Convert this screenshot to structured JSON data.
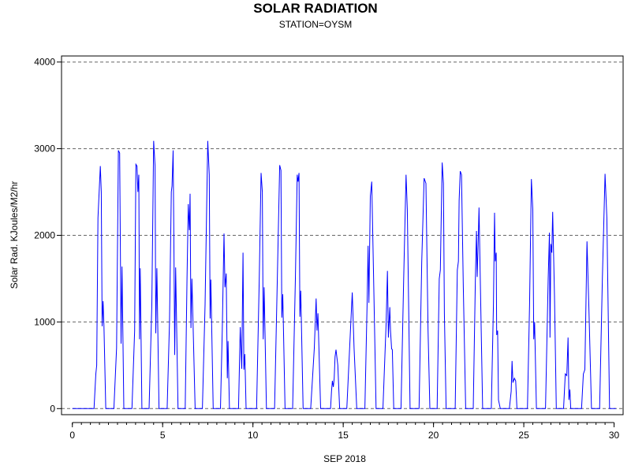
{
  "chart_data": {
    "type": "line",
    "title": "SOLAR RADIATION",
    "subtitle": "STATION=OYSM",
    "xlabel": "SEP 2018",
    "ylabel": "Solar Rad. KJoules/M2/hr",
    "xlim": [
      -0.6,
      30.5
    ],
    "ylim": [
      -70,
      4070
    ],
    "xticks": [
      0,
      5,
      10,
      15,
      20,
      25,
      30
    ],
    "xminor_step": 0.5,
    "yticks": [
      0,
      1000,
      2000,
      3000,
      4000
    ],
    "grid": "horizontal-dashed",
    "line_color": "#0000ff",
    "series": [
      {
        "values_desc": "hourly",
        "points": [
          [
            0,
            0
          ],
          [
            1.2,
            0
          ],
          [
            1.3,
            400
          ],
          [
            1.35,
            500
          ],
          [
            1.42,
            2200
          ],
          [
            1.55,
            2800
          ],
          [
            1.6,
            2500
          ],
          [
            1.65,
            950
          ],
          [
            1.7,
            1240
          ],
          [
            1.75,
            950
          ],
          [
            1.85,
            0
          ],
          [
            2.3,
            0
          ],
          [
            2.45,
            700
          ],
          [
            2.55,
            2980
          ],
          [
            2.62,
            2950
          ],
          [
            2.7,
            750
          ],
          [
            2.75,
            1640
          ],
          [
            2.85,
            0
          ],
          [
            3.3,
            0
          ],
          [
            3.45,
            900
          ],
          [
            3.52,
            2820
          ],
          [
            3.58,
            2800
          ],
          [
            3.63,
            2500
          ],
          [
            3.68,
            2700
          ],
          [
            3.72,
            800
          ],
          [
            3.76,
            1620
          ],
          [
            3.85,
            0
          ],
          [
            4.25,
            0
          ],
          [
            4.4,
            1200
          ],
          [
            4.5,
            3090
          ],
          [
            4.58,
            2800
          ],
          [
            4.62,
            870
          ],
          [
            4.68,
            1620
          ],
          [
            4.8,
            0
          ],
          [
            5.25,
            0
          ],
          [
            5.38,
            1000
          ],
          [
            5.48,
            2500
          ],
          [
            5.52,
            2570
          ],
          [
            5.58,
            2980
          ],
          [
            5.62,
            2000
          ],
          [
            5.67,
            620
          ],
          [
            5.72,
            1630
          ],
          [
            5.85,
            0
          ],
          [
            6.25,
            0
          ],
          [
            6.35,
            1500
          ],
          [
            6.42,
            2360
          ],
          [
            6.48,
            2060
          ],
          [
            6.52,
            2480
          ],
          [
            6.57,
            930
          ],
          [
            6.62,
            1500
          ],
          [
            6.68,
            1000
          ],
          [
            6.8,
            0
          ],
          [
            7.2,
            0
          ],
          [
            7.35,
            1200
          ],
          [
            7.5,
            3090
          ],
          [
            7.58,
            2700
          ],
          [
            7.63,
            1040
          ],
          [
            7.67,
            1490
          ],
          [
            7.8,
            0
          ],
          [
            8.2,
            0
          ],
          [
            8.3,
            900
          ],
          [
            8.4,
            2020
          ],
          [
            8.45,
            1400
          ],
          [
            8.52,
            1560
          ],
          [
            8.58,
            350
          ],
          [
            8.62,
            780
          ],
          [
            8.7,
            0
          ],
          [
            9.2,
            0
          ],
          [
            9.3,
            940
          ],
          [
            9.38,
            460
          ],
          [
            9.45,
            1800
          ],
          [
            9.5,
            450
          ],
          [
            9.55,
            630
          ],
          [
            9.62,
            0
          ],
          [
            10.2,
            0
          ],
          [
            10.35,
            1500
          ],
          [
            10.45,
            2720
          ],
          [
            10.52,
            2500
          ],
          [
            10.57,
            800
          ],
          [
            10.62,
            1400
          ],
          [
            10.75,
            0
          ],
          [
            11.2,
            0
          ],
          [
            11.35,
            1500
          ],
          [
            11.48,
            2810
          ],
          [
            11.55,
            2750
          ],
          [
            11.6,
            1050
          ],
          [
            11.65,
            1320
          ],
          [
            11.78,
            0
          ],
          [
            12.2,
            0
          ],
          [
            12.35,
            1500
          ],
          [
            12.45,
            2700
          ],
          [
            12.5,
            2620
          ],
          [
            12.55,
            2720
          ],
          [
            12.6,
            1060
          ],
          [
            12.65,
            1360
          ],
          [
            12.78,
            0
          ],
          [
            13.2,
            0
          ],
          [
            13.4,
            700
          ],
          [
            13.5,
            1270
          ],
          [
            13.55,
            900
          ],
          [
            13.6,
            1100
          ],
          [
            13.75,
            0
          ],
          [
            14.3,
            0
          ],
          [
            14.35,
            200
          ],
          [
            14.4,
            320
          ],
          [
            14.45,
            250
          ],
          [
            14.5,
            350
          ],
          [
            14.55,
            600
          ],
          [
            14.6,
            680
          ],
          [
            14.7,
            500
          ],
          [
            14.8,
            0
          ],
          [
            15.2,
            0
          ],
          [
            15.4,
            900
          ],
          [
            15.5,
            1340
          ],
          [
            15.6,
            700
          ],
          [
            15.75,
            0
          ],
          [
            16.2,
            0
          ],
          [
            16.32,
            1200
          ],
          [
            16.38,
            1880
          ],
          [
            16.42,
            1220
          ],
          [
            16.5,
            2450
          ],
          [
            16.58,
            2620
          ],
          [
            16.7,
            1300
          ],
          [
            16.82,
            0
          ],
          [
            17.2,
            0
          ],
          [
            17.38,
            1000
          ],
          [
            17.45,
            1590
          ],
          [
            17.5,
            820
          ],
          [
            17.58,
            1170
          ],
          [
            17.62,
            900
          ],
          [
            17.68,
            690
          ],
          [
            17.72,
            680
          ],
          [
            17.8,
            0
          ],
          [
            18.2,
            0
          ],
          [
            18.35,
            1500
          ],
          [
            18.48,
            2700
          ],
          [
            18.55,
            2300
          ],
          [
            18.7,
            0
          ],
          [
            19.2,
            0
          ],
          [
            19.35,
            1700
          ],
          [
            19.48,
            2660
          ],
          [
            19.58,
            2600
          ],
          [
            19.7,
            900
          ],
          [
            19.8,
            0
          ],
          [
            20.2,
            0
          ],
          [
            20.32,
            1500
          ],
          [
            20.38,
            1600
          ],
          [
            20.42,
            2100
          ],
          [
            20.48,
            2840
          ],
          [
            20.55,
            2600
          ],
          [
            20.6,
            1100
          ],
          [
            20.7,
            0
          ],
          [
            21.2,
            0
          ],
          [
            21.32,
            1600
          ],
          [
            21.38,
            1700
          ],
          [
            21.42,
            2400
          ],
          [
            21.48,
            2740
          ],
          [
            21.55,
            2700
          ],
          [
            21.65,
            1400
          ],
          [
            21.78,
            0
          ],
          [
            22.2,
            0
          ],
          [
            22.32,
            1500
          ],
          [
            22.38,
            2050
          ],
          [
            22.42,
            1520
          ],
          [
            22.47,
            1900
          ],
          [
            22.52,
            2320
          ],
          [
            22.6,
            1400
          ],
          [
            22.72,
            0
          ],
          [
            23.2,
            0
          ],
          [
            23.32,
            1200
          ],
          [
            23.38,
            2260
          ],
          [
            23.42,
            1700
          ],
          [
            23.47,
            1800
          ],
          [
            23.5,
            850
          ],
          [
            23.55,
            900
          ],
          [
            23.6,
            100
          ],
          [
            23.7,
            0
          ],
          [
            24.2,
            0
          ],
          [
            24.3,
            200
          ],
          [
            24.35,
            550
          ],
          [
            24.4,
            300
          ],
          [
            24.48,
            350
          ],
          [
            24.55,
            320
          ],
          [
            24.62,
            0
          ],
          [
            25.2,
            0
          ],
          [
            25.32,
            1200
          ],
          [
            25.42,
            2650
          ],
          [
            25.5,
            2300
          ],
          [
            25.55,
            800
          ],
          [
            25.6,
            1000
          ],
          [
            25.7,
            0
          ],
          [
            26.2,
            0
          ],
          [
            26.35,
            1500
          ],
          [
            26.42,
            2030
          ],
          [
            26.45,
            820
          ],
          [
            26.5,
            1900
          ],
          [
            26.55,
            1800
          ],
          [
            26.6,
            2270
          ],
          [
            26.7,
            1300
          ],
          [
            26.8,
            0
          ],
          [
            27.2,
            0
          ],
          [
            27.3,
            400
          ],
          [
            27.38,
            380
          ],
          [
            27.45,
            820
          ],
          [
            27.5,
            100
          ],
          [
            27.55,
            220
          ],
          [
            27.6,
            0
          ],
          [
            28.2,
            0
          ],
          [
            28.3,
            400
          ],
          [
            28.38,
            450
          ],
          [
            28.5,
            1930
          ],
          [
            28.6,
            1200
          ],
          [
            28.75,
            0
          ],
          [
            29.2,
            0
          ],
          [
            29.35,
            1500
          ],
          [
            29.5,
            2710
          ],
          [
            29.6,
            2200
          ],
          [
            29.75,
            0
          ],
          [
            30.1,
            0
          ]
        ]
      }
    ]
  }
}
